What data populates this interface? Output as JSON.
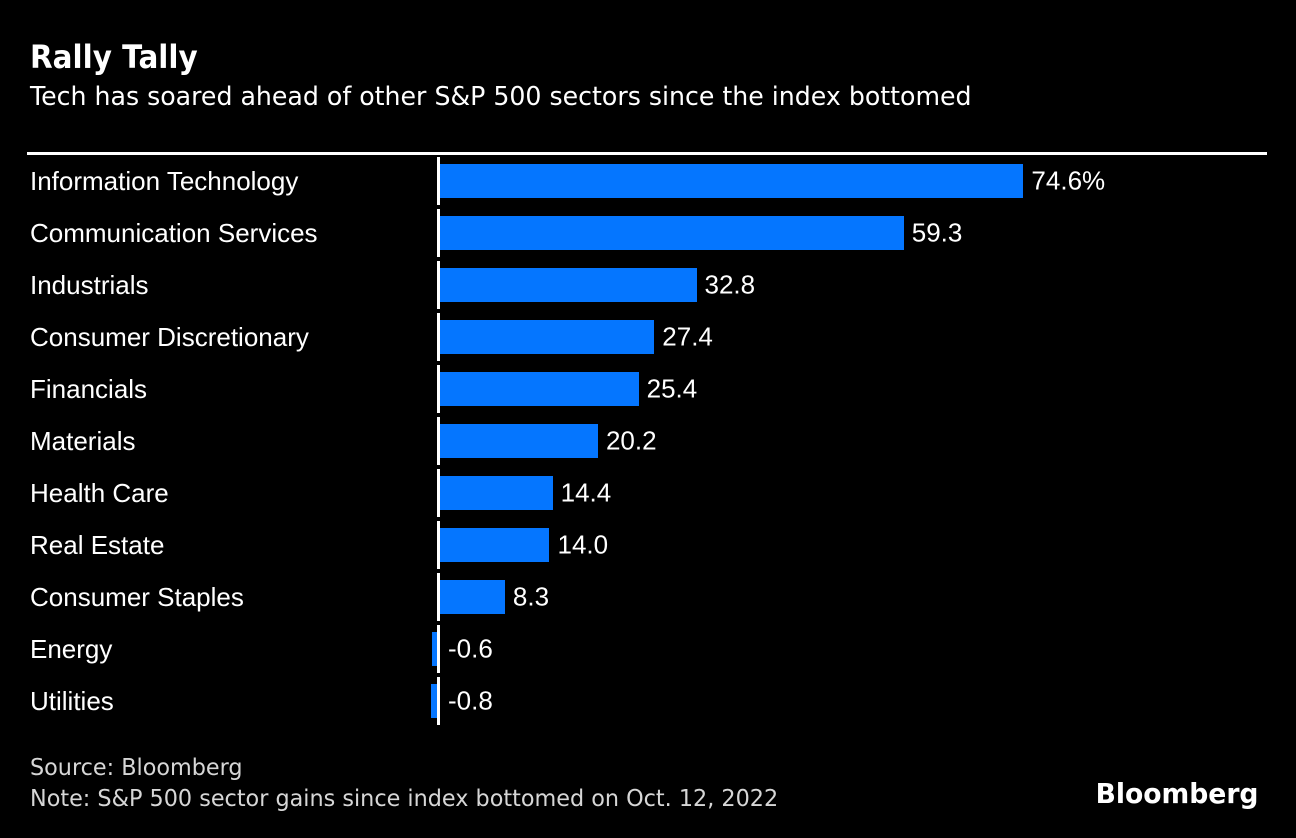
{
  "header": {
    "title": "Rally Tally",
    "subtitle": "Tech has soared ahead of other S&P 500 sectors since the index bottomed"
  },
  "chart_data": {
    "type": "bar",
    "orientation": "horizontal",
    "title": "Rally Tally",
    "subtitle": "Tech has soared ahead of other S&P 500 sectors since the index bottomed",
    "xlabel": "",
    "ylabel": "",
    "categories": [
      "Information Technology",
      "Communication Services",
      "Industrials",
      "Consumer Discretionary",
      "Financials",
      "Materials",
      "Health Care",
      "Real Estate",
      "Consumer Staples",
      "Energy",
      "Utilities"
    ],
    "values": [
      74.6,
      59.3,
      32.8,
      27.4,
      25.4,
      20.2,
      14.4,
      14.0,
      8.3,
      -0.6,
      -0.8
    ],
    "value_labels": [
      "74.6%",
      "59.3",
      "32.8",
      "27.4",
      "25.4",
      "20.2",
      "14.4",
      "14.0",
      "8.3",
      "-0.6",
      "-0.8"
    ],
    "unit": "percent",
    "xlim": [
      0,
      106
    ],
    "grid": false,
    "legend": false,
    "bar_color": "#0576ff",
    "axis_color": "#ffffff",
    "background_color": "#000000",
    "text_color": "#ffffff",
    "muted_text_color": "#d6d6d6"
  },
  "footer": {
    "source": "Source: Bloomberg",
    "note": "Note: S&P 500 sector gains since index bottomed on Oct. 12, 2022",
    "logo": "Bloomberg"
  }
}
